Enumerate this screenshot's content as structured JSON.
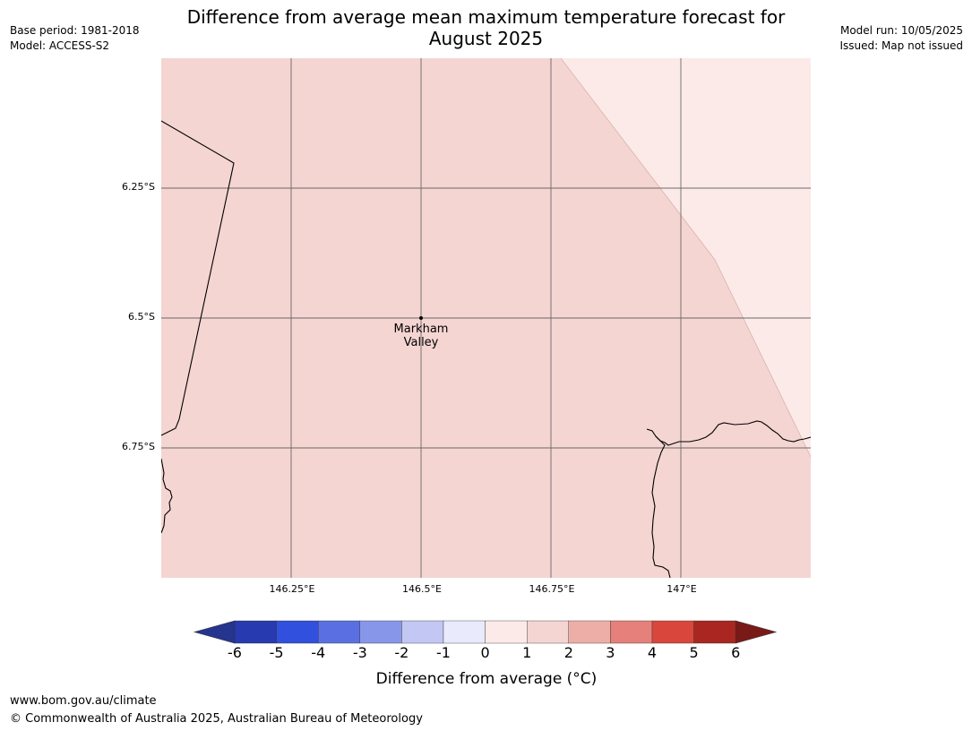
{
  "title_line1": "Difference from average mean maximum temperature forecast for",
  "title_line2": "August 2025",
  "meta_left": {
    "base_period": "Base period: 1981-2018",
    "model": "Model: ACCESS-S2"
  },
  "meta_right": {
    "model_run": "Model run: 10/05/2025",
    "issued": "Issued: Map not issued"
  },
  "map": {
    "lat_labels": [
      "6.25°S",
      "6.5°S",
      "6.75°S"
    ],
    "lon_labels": [
      "146.25°E",
      "146.5°E",
      "146.75°E",
      "147°E"
    ],
    "place": {
      "line1": "Markham",
      "line2": "Valley"
    },
    "main_fill_color": "#f4d5d2",
    "light_fill_color": "#fbeae8"
  },
  "colorbar": {
    "ticks": [
      "-6",
      "-5",
      "-4",
      "-3",
      "-2",
      "-1",
      "0",
      "1",
      "2",
      "3",
      "4",
      "5",
      "6"
    ],
    "colors": [
      "#25348f",
      "#283ab0",
      "#3150dd",
      "#5a70e2",
      "#8896ea",
      "#c2c8f3",
      "#e9ebfc",
      "#fbeae8",
      "#f4d5d2",
      "#eeaea8",
      "#e6807a",
      "#d9463b",
      "#aa2621",
      "#7a1a18"
    ],
    "label": "Difference from average (°C)"
  },
  "footer": {
    "url": "www.bom.gov.au/climate",
    "copyright": "© Commonwealth of Australia 2025, Australian Bureau of Meteorology"
  }
}
